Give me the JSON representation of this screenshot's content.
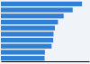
{
  "chart_data": {
    "type": "bar",
    "orientation": "horizontal",
    "categories": [
      null,
      null,
      null,
      null,
      null,
      null,
      null,
      null,
      null,
      null
    ],
    "values": [
      800,
      708,
      619,
      563,
      532,
      519,
      516,
      500,
      434,
      431
    ],
    "color": "#2f7fd4",
    "xlim": [
      0,
      870
    ],
    "tick_labels": false
  }
}
